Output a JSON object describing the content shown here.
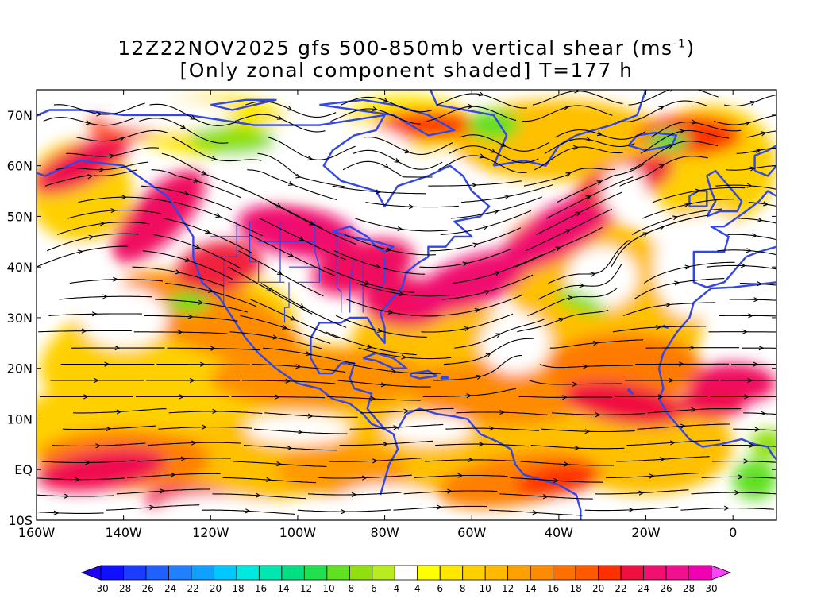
{
  "title": {
    "line1_prefix": "12Z22NOV2025 gfs 500-850mb vertical shear (ms",
    "line1_exponent": "-1",
    "line1_suffix": ")",
    "line2": "[Only zonal component shaded] T=177 h"
  },
  "map": {
    "lat_labels": [
      "70N",
      "60N",
      "50N",
      "40N",
      "30N",
      "20N",
      "10N",
      "EQ",
      "10S"
    ],
    "lon_labels": [
      "160W",
      "140W",
      "120W",
      "100W",
      "80W",
      "60W",
      "40W",
      "20W",
      "0"
    ],
    "lat_range": [
      -10,
      75
    ],
    "lon_range": [
      -160,
      10
    ],
    "coastline_color": "#3346e6",
    "streamline_color": "#000000"
  },
  "colorbar": {
    "labels": [
      "-30",
      "-28",
      "-26",
      "-24",
      "-22",
      "-20",
      "-18",
      "-16",
      "-14",
      "-12",
      "-10",
      "-8",
      "-6",
      "-4",
      "4",
      "6",
      "8",
      "10",
      "12",
      "14",
      "16",
      "18",
      "20",
      "22",
      "24",
      "26",
      "28",
      "30"
    ],
    "colors": [
      "#1010ff",
      "#1c3cff",
      "#2060ff",
      "#2080ff",
      "#10a0ff",
      "#00c8ff",
      "#00e8e0",
      "#00e8b0",
      "#00e080",
      "#20e050",
      "#60e020",
      "#90e010",
      "#b8ec20",
      "#ffffff",
      "#ffff00",
      "#ffe600",
      "#ffd000",
      "#ffba00",
      "#ffa000",
      "#ff8c00",
      "#ff7000",
      "#ff5a00",
      "#ff3000",
      "#f01040",
      "#f01070",
      "#f01090",
      "#f000b0"
    ],
    "underflow_color": "#1e00ff",
    "overflow_color": "#ff40ff"
  }
}
